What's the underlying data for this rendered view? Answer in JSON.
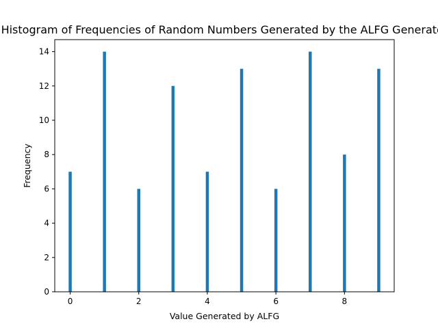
{
  "chart_data": {
    "type": "bar",
    "title": "Histogram of Frequencies of Random Numbers Generated by the ALFG Generator",
    "xlabel": "Value Generated by ALFG",
    "ylabel": "Frequency",
    "x": [
      0,
      1,
      2,
      3,
      4,
      5,
      6,
      7,
      8,
      9
    ],
    "values": [
      7,
      14,
      6,
      12,
      7,
      13,
      6,
      14,
      8,
      13
    ],
    "xlim": [
      -0.45,
      9.45
    ],
    "ylim": [
      0,
      14.7
    ],
    "xticks": [
      0,
      2,
      4,
      6,
      8
    ],
    "yticks": [
      0,
      2,
      4,
      6,
      8,
      10,
      12,
      14
    ],
    "bar_color": "#1f77b4",
    "grid": false,
    "legend": "none"
  }
}
